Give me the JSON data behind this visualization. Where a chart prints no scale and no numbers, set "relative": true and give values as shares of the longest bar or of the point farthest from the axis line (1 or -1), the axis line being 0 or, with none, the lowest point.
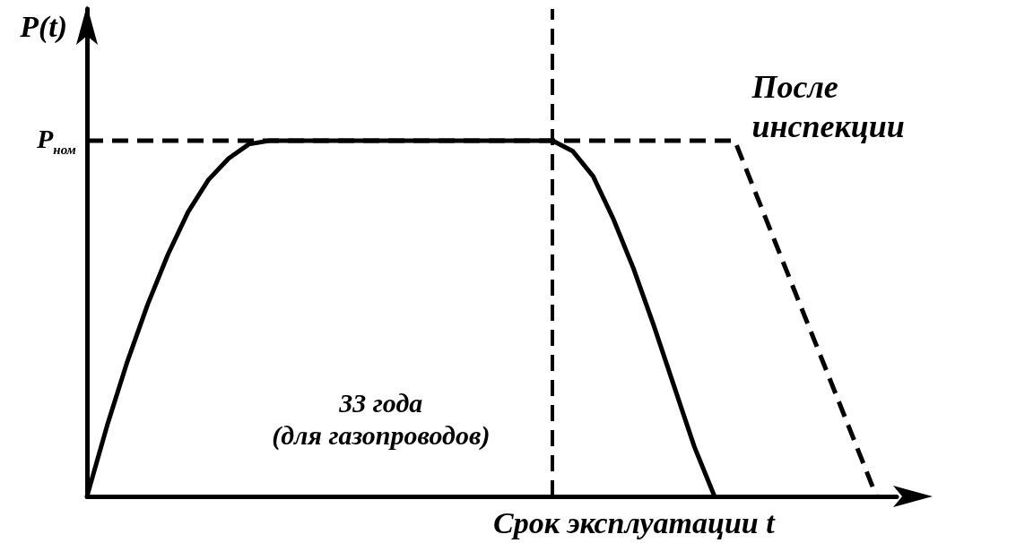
{
  "chart_data": {
    "type": "line",
    "relative": true,
    "xlabel": "Срок эксплуатации t",
    "ylabel": "P(t)",
    "categories": [
      null,
      null,
      null,
      null,
      null,
      null,
      null,
      null,
      null,
      null,
      null,
      null,
      null,
      null,
      null,
      null,
      null,
      null,
      null,
      null,
      null,
      null,
      null,
      null,
      null,
      null,
      null,
      null,
      null,
      null,
      null,
      null,
      null,
      null,
      null,
      null,
      null,
      null,
      null,
      null,
      null
    ],
    "series": [
      {
        "color": "#000000",
        "line_style": "solid",
        "values": [
          0,
          0.2,
          0.38,
          0.54,
          0.68,
          0.8,
          0.89,
          0.95,
          0.99,
          1,
          1,
          1,
          1,
          1,
          1,
          1,
          1,
          1,
          1,
          1,
          1,
          1,
          1,
          1,
          0.97,
          0.9,
          0.78,
          0.64,
          0.48,
          0.31,
          0.14,
          0,
          null,
          null,
          null,
          null,
          null,
          null,
          null,
          null,
          null
        ]
      },
      {
        "name": "После инспекции",
        "color": "#000000",
        "line_style": "dashed",
        "values": [
          1,
          1,
          1,
          1,
          1,
          1,
          1,
          1,
          1,
          1,
          1,
          1,
          1,
          1,
          1,
          1,
          1,
          1,
          1,
          1,
          1,
          1,
          1,
          1,
          1,
          1,
          1,
          1,
          1,
          1,
          1,
          1,
          1,
          0.857,
          0.714,
          0.571,
          0.429,
          0.286,
          0.143,
          0,
          null
        ]
      }
    ],
    "annotations": [
      "P$_{ном}$",
      "33 года\n(для газопроводов)"
    ],
    "marker": "none",
    "grid": false,
    "legend": false
  }
}
